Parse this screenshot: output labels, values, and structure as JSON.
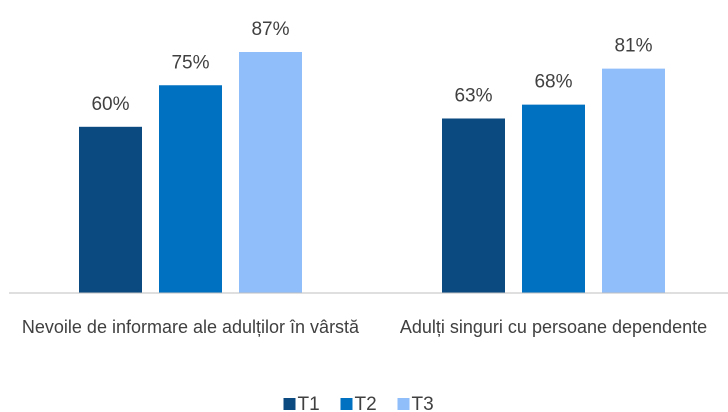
{
  "chart_data": {
    "type": "bar",
    "categories": [
      "Nevoile de informare ale adulților în vârstă",
      "Adulți singuri cu persoane dependente"
    ],
    "series": [
      {
        "name": "T1",
        "color": "#0b4a80",
        "values": [
          60,
          63
        ],
        "value_labels": [
          "60%",
          "63%"
        ]
      },
      {
        "name": "T2",
        "color": "#0070c0",
        "values": [
          75,
          68
        ],
        "value_labels": [
          "75%",
          "68%"
        ]
      },
      {
        "name": "T3",
        "color": "#8fbefa",
        "values": [
          87,
          81
        ],
        "value_labels": [
          "87%",
          "81%"
        ]
      }
    ],
    "ylim": [
      0,
      100
    ],
    "legend": "bottom"
  }
}
